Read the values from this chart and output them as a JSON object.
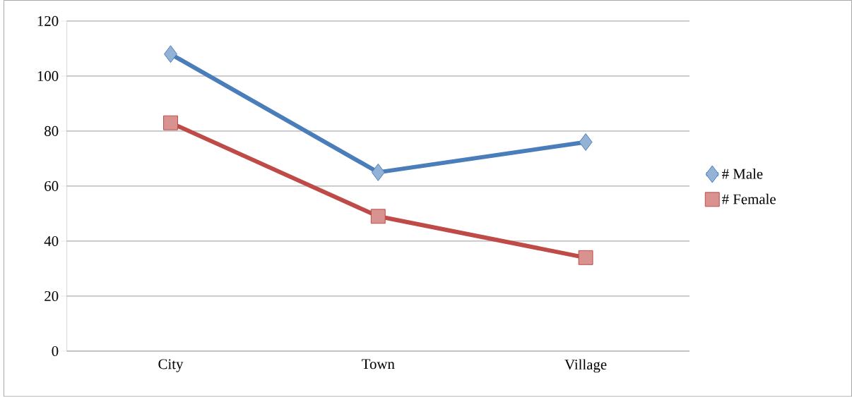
{
  "chart_data": {
    "type": "line",
    "categories": [
      "City",
      "Town",
      "Village"
    ],
    "series": [
      {
        "name": "# Male",
        "color": "#4a7ebb",
        "marker": "diamond",
        "values": [
          108,
          65,
          76
        ]
      },
      {
        "name": "# Female",
        "color": "#be4b48",
        "marker": "square",
        "values": [
          83,
          49,
          34
        ]
      }
    ],
    "ylim": [
      0,
      120
    ],
    "yticks": [
      0,
      20,
      40,
      60,
      80,
      100,
      120
    ],
    "grid": "y",
    "legend": "right"
  }
}
